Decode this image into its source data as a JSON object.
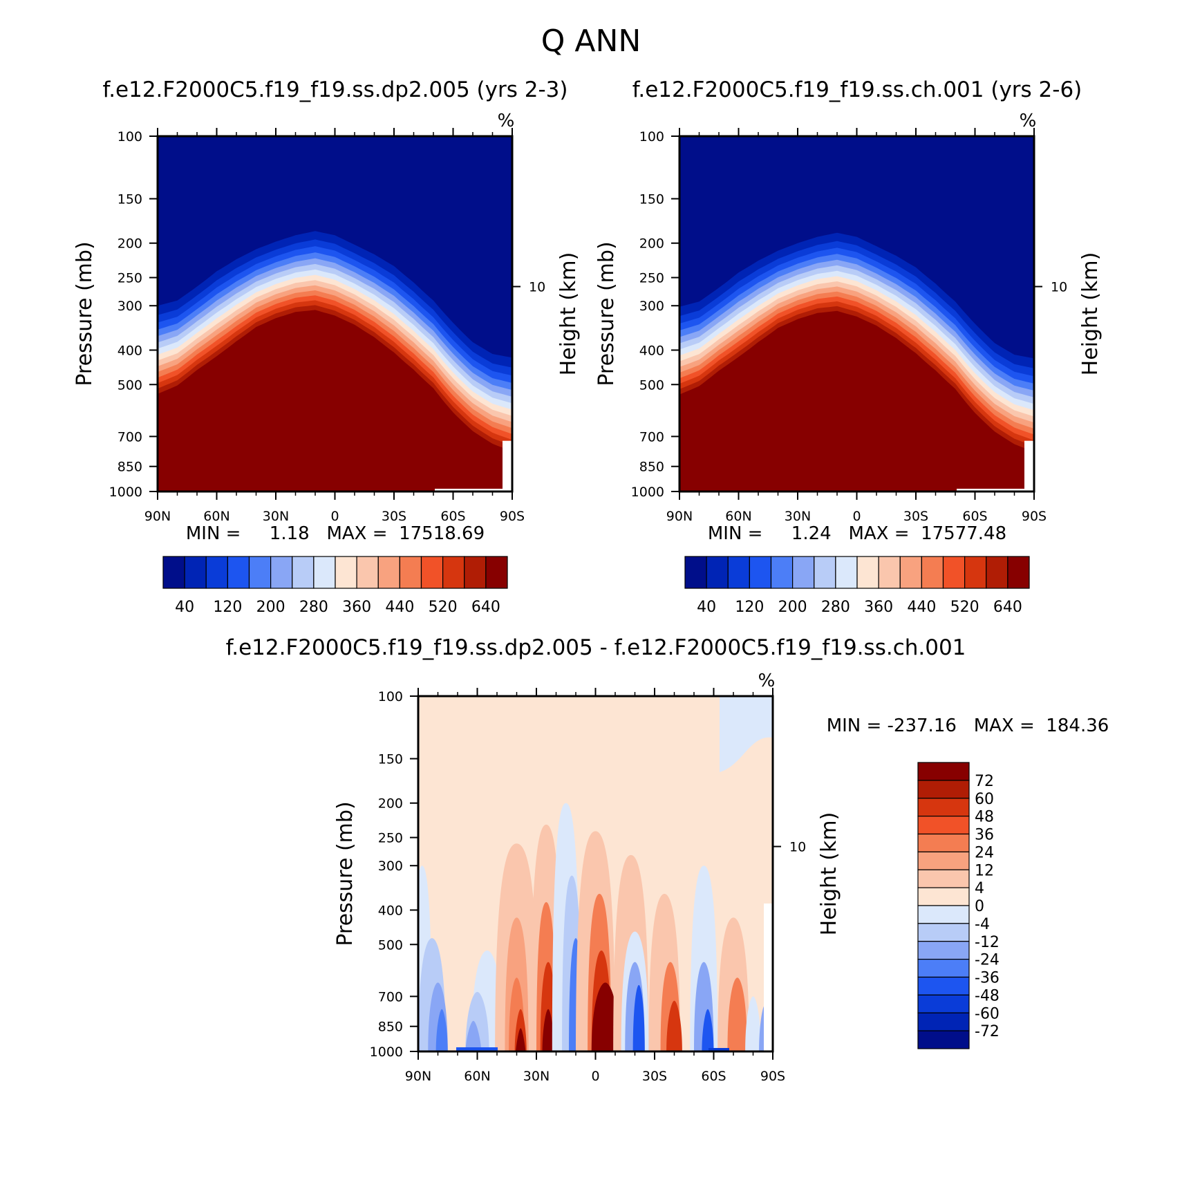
{
  "figure": {
    "title": "Q  ANN"
  },
  "chart_data": [
    {
      "type": "heatmap",
      "title": "f.e12.F2000C5.f19_f19.ss.dp2.005 (yrs 2-3)",
      "unit_label": "%",
      "ylabel": "Pressure (mb)",
      "ylabel_right": "Height (km)",
      "x_ticks": [
        "90N",
        "60N",
        "30N",
        "0",
        "30S",
        "60S",
        "90S"
      ],
      "y_ticks": [
        "100",
        "150",
        "200",
        "250",
        "300",
        "400",
        "500",
        "700",
        "850",
        "1000"
      ],
      "y_right_ticks": [
        "10"
      ],
      "ylim": [
        1000,
        100
      ],
      "y_scale": "log",
      "stats": "MIN =     1.18   MAX =  17518.69",
      "colorbar": {
        "orientation": "horizontal",
        "labels": [
          "40",
          "120",
          "200",
          "280",
          "360",
          "440",
          "520",
          "640"
        ],
        "colors": [
          "#000e8a",
          "#0024b5",
          "#0a3cd8",
          "#1d55f0",
          "#4c7ef7",
          "#89a6f5",
          "#b8ccf7",
          "#dbe8fb",
          "#fde5d3",
          "#fac6ad",
          "#f8a27f",
          "#f47d52",
          "#f15228",
          "#d6360f",
          "#b01d05",
          "#870000"
        ]
      },
      "series": [
        {
          "values_note_free": true,
          "lat": [
            -90,
            -80,
            -70,
            -60,
            -50,
            -40,
            -30,
            -20,
            -10,
            0,
            10,
            20,
            30,
            40,
            50,
            60,
            70,
            80,
            90
          ],
          "moist_top_pressure": [
            300,
            290,
            265,
            240,
            222,
            208,
            198,
            190,
            185,
            190,
            202,
            215,
            232,
            258,
            290,
            335,
            380,
            410,
            420
          ],
          "rich_top_pressure": [
            550,
            520,
            470,
            430,
            390,
            355,
            335,
            322,
            318,
            330,
            350,
            380,
            420,
            470,
            530,
            620,
            700,
            760,
            800
          ]
        }
      ]
    },
    {
      "type": "heatmap",
      "title": "f.e12.F2000C5.f19_f19.ss.ch.001 (yrs 2-6)",
      "unit_label": "%",
      "ylabel": "Pressure (mb)",
      "ylabel_right": "Height (km)",
      "x_ticks": [
        "90N",
        "60N",
        "30N",
        "0",
        "30S",
        "60S",
        "90S"
      ],
      "y_ticks": [
        "100",
        "150",
        "200",
        "250",
        "300",
        "400",
        "500",
        "700",
        "850",
        "1000"
      ],
      "y_right_ticks": [
        "10"
      ],
      "ylim": [
        1000,
        100
      ],
      "y_scale": "log",
      "stats": "MIN =     1.24   MAX =  17577.48",
      "colorbar": {
        "orientation": "horizontal",
        "labels": [
          "40",
          "120",
          "200",
          "280",
          "360",
          "440",
          "520",
          "640"
        ],
        "colors": [
          "#000e8a",
          "#0024b5",
          "#0a3cd8",
          "#1d55f0",
          "#4c7ef7",
          "#89a6f5",
          "#b8ccf7",
          "#dbe8fb",
          "#fde5d3",
          "#fac6ad",
          "#f8a27f",
          "#f47d52",
          "#f15228",
          "#d6360f",
          "#b01d05",
          "#870000"
        ]
      }
    },
    {
      "type": "heatmap",
      "title": "f.e12.F2000C5.f19_f19.ss.dp2.005 - f.e12.F2000C5.f19_f19.ss.ch.001",
      "unit_label": "%",
      "ylabel": "Pressure (mb)",
      "ylabel_right": "Height (km)",
      "x_ticks": [
        "90N",
        "60N",
        "30N",
        "0",
        "30S",
        "60S",
        "90S"
      ],
      "y_ticks": [
        "100",
        "150",
        "200",
        "250",
        "300",
        "400",
        "500",
        "700",
        "850",
        "1000"
      ],
      "y_right_ticks": [
        "10"
      ],
      "ylim": [
        1000,
        100
      ],
      "y_scale": "log",
      "stats": "MIN = -237.16   MAX =  184.36",
      "colorbar": {
        "orientation": "vertical",
        "labels": [
          "72",
          "60",
          "48",
          "36",
          "24",
          "12",
          "4",
          "0",
          "-4",
          "-12",
          "-24",
          "-36",
          "-48",
          "-60",
          "-72"
        ],
        "colors": [
          "#870000",
          "#b01d05",
          "#d6360f",
          "#f15228",
          "#f47d52",
          "#f8a27f",
          "#fac6ad",
          "#fde5d3",
          "#dbe8fb",
          "#b8ccf7",
          "#89a6f5",
          "#4c7ef7",
          "#1d55f0",
          "#0a3cd8",
          "#0024b5",
          "#000e8a"
        ]
      }
    }
  ]
}
